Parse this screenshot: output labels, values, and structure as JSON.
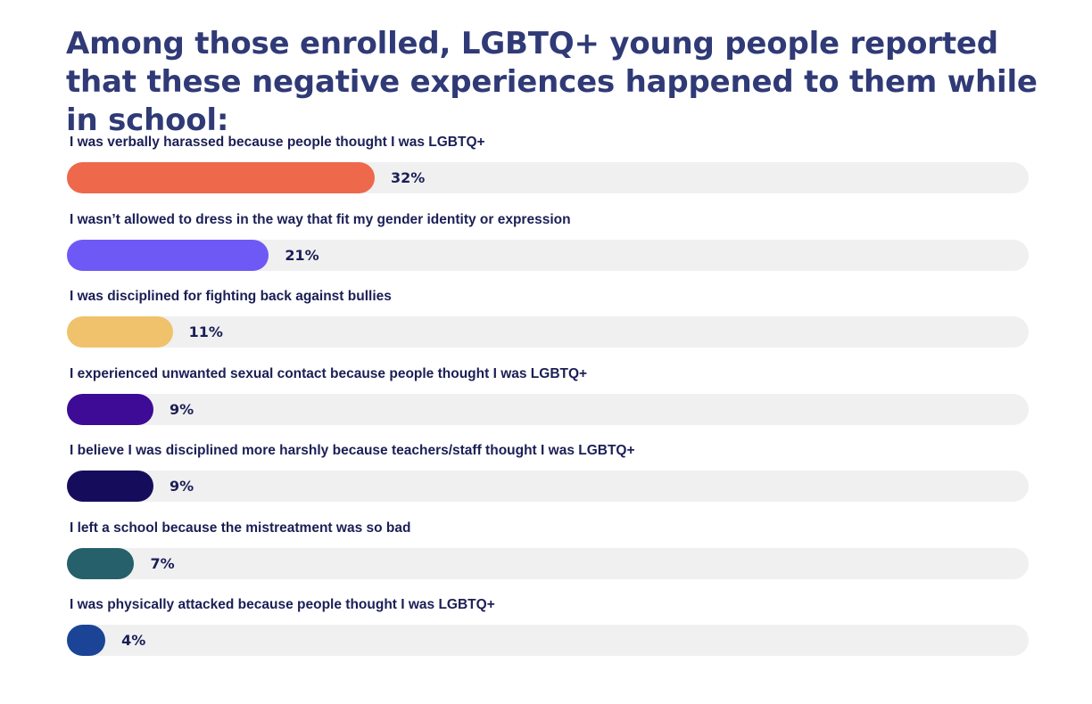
{
  "title": "Among those enrolled, LGBTQ+ young people reported that these negative experiences happened to them while in school:",
  "chart_data": {
    "type": "bar",
    "orientation": "horizontal",
    "title": "Among those enrolled, LGBTQ+ young people reported that these negative experiences happened to them while in school:",
    "xlabel": "",
    "ylabel": "",
    "xlim": [
      0,
      100
    ],
    "grid": false,
    "categories": [
      "I was verbally harassed because people thought I was LGBTQ+",
      "I wasn’t allowed to dress in the way that fit my gender identity or expression",
      "I was disciplined for fighting back against bullies",
      "I experienced unwanted sexual contact because people thought I was LGBTQ+",
      "I believe I was disciplined more harshly because teachers/staff thought I was LGBTQ+",
      "I left a school because the mistreatment was so bad",
      "I was physically attacked because people thought I was LGBTQ+"
    ],
    "values": [
      32,
      21,
      11,
      9,
      9,
      7,
      4
    ],
    "value_labels": [
      "32%",
      "21%",
      "11%",
      "9%",
      "9%",
      "7%",
      "4%"
    ],
    "colors": [
      "#ee684c",
      "#6e59f7",
      "#f0c26c",
      "#3d0b96",
      "#150d5c",
      "#26606a",
      "#1c4496"
    ],
    "track_color": "#f0f0f1"
  }
}
